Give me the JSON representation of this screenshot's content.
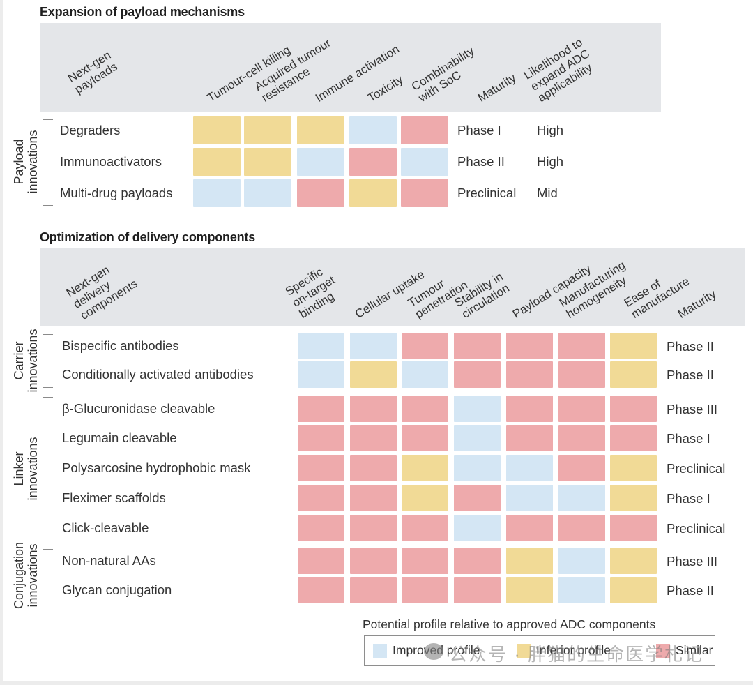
{
  "colors": {
    "improved": "#d4e6f4",
    "inferior": "#f1da96",
    "similar": "#eeaaac",
    "header_band": "#e4e6e9"
  },
  "section1": {
    "title": "Expansion of payload mechanisms",
    "row_header": "Next-gen\npayloads",
    "columns": [
      "Tumour-cell killing",
      "Acquired tumour\nresistance",
      "Immune activation",
      "Toxicity",
      "Combinability\nwith SoC",
      "Maturity",
      "Likelihood to\nexpand ADC\napplicability"
    ],
    "groups": [
      {
        "label": "Payload\ninnovations",
        "rows": [
          0,
          1,
          2
        ]
      }
    ],
    "rows": [
      {
        "name": "Degraders",
        "cells": [
          "inferior",
          "inferior",
          "inferior",
          "improved",
          "similar"
        ],
        "maturity": "Phase I",
        "likelihood": "High"
      },
      {
        "name": "Immunoactivators",
        "cells": [
          "inferior",
          "inferior",
          "improved",
          "similar",
          "improved"
        ],
        "maturity": "Phase II",
        "likelihood": "High"
      },
      {
        "name": "Multi-drug payloads",
        "cells": [
          "improved",
          "improved",
          "similar",
          "inferior",
          "similar"
        ],
        "maturity": "Preclinical",
        "likelihood": "Mid"
      }
    ]
  },
  "section2": {
    "title": "Optimization of delivery components",
    "row_header": "Next-gen\ndelivery\ncomponents",
    "columns": [
      "Specific\non-target\nbinding",
      "Cellular uptake",
      "Tumour\npenetration",
      "Stability in\ncirculation",
      "Payload capacity",
      "Manufacturing\nhomogeneity",
      "Ease of\nmanufacture",
      "Maturity"
    ],
    "groups": [
      {
        "label": "Carrier\ninnovations",
        "rows": [
          0,
          1
        ]
      },
      {
        "label": "Linker\ninnovations",
        "rows": [
          2,
          3,
          4,
          5,
          6
        ]
      },
      {
        "label": "Conjugation\ninnovations",
        "rows": [
          7,
          8
        ]
      }
    ],
    "rows": [
      {
        "name": "Bispecific antibodies",
        "cells": [
          "improved",
          "improved",
          "similar",
          "similar",
          "similar",
          "similar",
          "inferior"
        ],
        "maturity": "Phase II"
      },
      {
        "name": "Conditionally activated antibodies",
        "cells": [
          "improved",
          "inferior",
          "improved",
          "similar",
          "similar",
          "similar",
          "inferior"
        ],
        "maturity": "Phase II"
      },
      {
        "name": "β-Glucuronidase cleavable",
        "cells": [
          "similar",
          "similar",
          "similar",
          "improved",
          "similar",
          "similar",
          "similar"
        ],
        "maturity": "Phase III"
      },
      {
        "name": "Legumain cleavable",
        "cells": [
          "similar",
          "similar",
          "similar",
          "improved",
          "similar",
          "similar",
          "similar"
        ],
        "maturity": "Phase I"
      },
      {
        "name": "Polysarcosine hydrophobic mask",
        "cells": [
          "similar",
          "similar",
          "inferior",
          "improved",
          "improved",
          "similar",
          "inferior"
        ],
        "maturity": "Preclinical"
      },
      {
        "name": "Fleximer scaffolds",
        "cells": [
          "similar",
          "similar",
          "inferior",
          "similar",
          "improved",
          "improved",
          "inferior"
        ],
        "maturity": "Phase I"
      },
      {
        "name": "Click-cleavable",
        "cells": [
          "similar",
          "similar",
          "similar",
          "improved",
          "similar",
          "similar",
          "similar"
        ],
        "maturity": "Preclinical"
      },
      {
        "name": "Non-natural AAs",
        "cells": [
          "similar",
          "similar",
          "similar",
          "similar",
          "inferior",
          "improved",
          "inferior"
        ],
        "maturity": "Phase III"
      },
      {
        "name": "Glycan conjugation",
        "cells": [
          "similar",
          "similar",
          "similar",
          "similar",
          "inferior",
          "improved",
          "inferior"
        ],
        "maturity": "Phase II"
      }
    ]
  },
  "legend": {
    "title": "Potential profile relative to approved ADC components",
    "items": [
      {
        "key": "improved",
        "label": "Improved profile"
      },
      {
        "key": "inferior",
        "label": "Inferior profile"
      },
      {
        "key": "similar",
        "label": "Similar"
      }
    ]
  },
  "watermark": {
    "text": "公众号 · 胖猫的生命医学札记",
    "icon": "wechat-icon"
  }
}
